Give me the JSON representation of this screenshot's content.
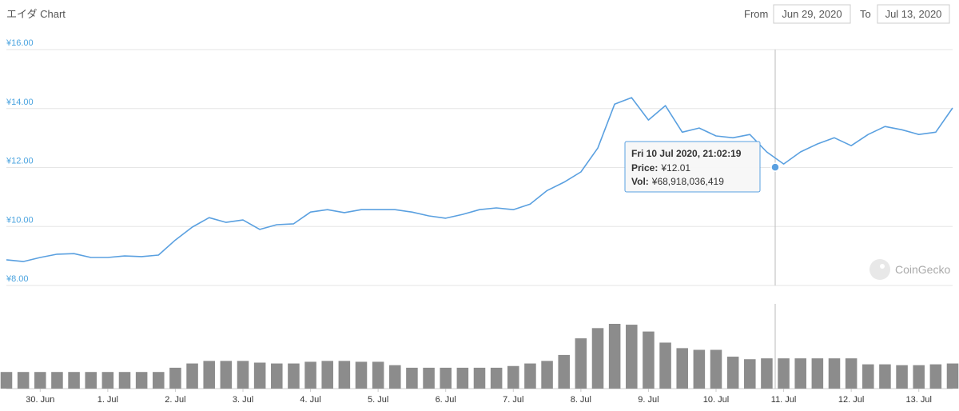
{
  "chart_data": {
    "type": "line",
    "title": "エイダ Chart",
    "date_range": {
      "from_label": "From",
      "from": "Jun 29, 2020",
      "to_label": "To",
      "to": "Jul 13, 2020"
    },
    "watermark": "CoinGecko",
    "color": "#5aa0e0",
    "grid": true,
    "ylim": [
      8,
      16
    ],
    "yticks": [
      {
        "value": 16,
        "label": "¥16.00"
      },
      {
        "value": 14,
        "label": "¥14.00"
      },
      {
        "value": 12,
        "label": "¥12.00"
      },
      {
        "value": 10,
        "label": "¥10.00"
      },
      {
        "value": 8,
        "label": "¥8.00"
      }
    ],
    "categories": [
      null,
      null,
      "30. Jun",
      null,
      null,
      null,
      "1. Jul",
      null,
      null,
      null,
      "2. Jul",
      null,
      null,
      null,
      "3. Jul",
      null,
      null,
      null,
      "4. Jul",
      null,
      null,
      null,
      "5. Jul",
      null,
      null,
      null,
      "6. Jul",
      null,
      null,
      null,
      "7. Jul",
      null,
      null,
      null,
      "8. Jul",
      null,
      null,
      null,
      "9. Jul",
      null,
      null,
      null,
      "10. Jul",
      null,
      null,
      null,
      "11. Jul",
      null,
      null,
      null,
      "12. Jul",
      null,
      null,
      null,
      "13. Jul",
      null,
      null
    ],
    "values": [
      8.87,
      8.81,
      8.95,
      9.06,
      9.08,
      8.95,
      8.95,
      9.0,
      8.98,
      9.03,
      9.54,
      9.98,
      10.3,
      10.14,
      10.22,
      9.9,
      10.06,
      10.09,
      10.49,
      10.57,
      10.47,
      10.57,
      10.57,
      10.57,
      10.49,
      10.36,
      10.28,
      10.41,
      10.57,
      10.63,
      10.57,
      10.76,
      11.22,
      11.5,
      11.85,
      12.66,
      14.15,
      14.37,
      13.61,
      14.1,
      13.2,
      13.34,
      13.07,
      13.01,
      13.12,
      12.53,
      12.12,
      12.53,
      12.8,
      13.01,
      12.74,
      13.12,
      13.39,
      13.28,
      13.12,
      13.2,
      14.02
    ],
    "volume": {
      "color": "#8c8c8c",
      "values": [
        39000000000,
        39000000000,
        39000000000,
        39000000000,
        39000000000,
        39000000000,
        39000000000,
        39000000000,
        39000000000,
        39000000000,
        49000000000,
        59000000000,
        65000000000,
        65000000000,
        65000000000,
        61000000000,
        59000000000,
        59000000000,
        63000000000,
        65000000000,
        65000000000,
        63000000000,
        63000000000,
        55000000000,
        49000000000,
        49000000000,
        49000000000,
        49000000000,
        49000000000,
        49000000000,
        53000000000,
        59000000000,
        65000000000,
        79000000000,
        118000000000,
        142000000000,
        152000000000,
        150000000000,
        134000000000,
        108000000000,
        95000000000,
        91000000000,
        91000000000,
        75000000000,
        69000000000,
        71000000000,
        71000000000,
        71000000000,
        71000000000,
        71000000000,
        71000000000,
        57000000000,
        57000000000,
        55000000000,
        55000000000,
        57000000000,
        59000000000
      ]
    },
    "tooltip": {
      "title": "Fri 10 Jul 2020, 21:02:19",
      "price_name": "Price:",
      "price": 12.01,
      "price_label": "¥12.01",
      "volume_name": "Vol:",
      "volume_label": "¥68,918,036,419"
    }
  }
}
